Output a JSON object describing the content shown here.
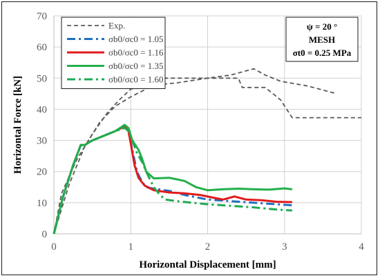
{
  "chart_data": {
    "type": "line",
    "xlabel": "Horizontal Displacement [mm]",
    "ylabel": "Horizontal Force [kN]",
    "xlim": [
      0,
      4
    ],
    "ylim": [
      0,
      70
    ],
    "xticks": [
      0,
      1,
      2,
      3,
      4
    ],
    "yticks": [
      0,
      10,
      20,
      30,
      40,
      50,
      60,
      70
    ],
    "grid": "vertical-and-horizontal",
    "legend_position": "top-left",
    "info_box": {
      "position": "top-right",
      "lines": [
        "ψ = 20 °",
        "MESH",
        "σt0 = 0.25 MPa"
      ]
    },
    "series": [
      {
        "name": "Exp.",
        "color": "#595959",
        "dash": "dashed",
        "segments": [
          [
            [
              0,
              0
            ],
            [
              0.1,
              13
            ],
            [
              0.3,
              24
            ],
            [
              0.5,
              32
            ],
            [
              0.7,
              39
            ],
            [
              0.85,
              43
            ],
            [
              1.0,
              46.5
            ],
            [
              1.2,
              47.5
            ],
            [
              1.6,
              48.5
            ],
            [
              2.0,
              50
            ],
            [
              2.3,
              51
            ],
            [
              2.6,
              53
            ],
            [
              2.75,
              51
            ],
            [
              2.95,
              49
            ],
            [
              3.3,
              47.5
            ],
            [
              3.68,
              45
            ]
          ],
          [
            [
              0,
              0
            ],
            [
              0.2,
              16
            ],
            [
              0.4,
              28
            ],
            [
              0.6,
              36
            ],
            [
              0.8,
              41
            ],
            [
              1.0,
              44
            ],
            [
              1.2,
              46.5
            ],
            [
              1.4,
              50
            ],
            [
              2.0,
              50
            ],
            [
              2.4,
              50
            ],
            [
              2.45,
              47
            ],
            [
              2.75,
              47
            ],
            [
              2.95,
              43
            ],
            [
              3.1,
              37.3
            ],
            [
              4.0,
              37.3
            ]
          ]
        ]
      },
      {
        "name": "σb0/σc0 = 1.05",
        "color": "#1f6fc0",
        "dash": "dash-dot",
        "points": [
          [
            0,
            0
          ],
          [
            0.12,
            12
          ],
          [
            0.25,
            22
          ],
          [
            0.35,
            28.5
          ],
          [
            0.4,
            28.5
          ],
          [
            0.5,
            30
          ],
          [
            0.65,
            31.5
          ],
          [
            0.8,
            33
          ],
          [
            0.92,
            34.5
          ],
          [
            0.97,
            33
          ],
          [
            1.02,
            27
          ],
          [
            1.08,
            20
          ],
          [
            1.14,
            17
          ],
          [
            1.2,
            15
          ],
          [
            1.3,
            14.5
          ],
          [
            1.5,
            13.8
          ],
          [
            1.7,
            12.5
          ],
          [
            2.0,
            11
          ],
          [
            2.3,
            10.5
          ],
          [
            2.6,
            10
          ],
          [
            2.9,
            9.5
          ],
          [
            3.1,
            9.2
          ]
        ]
      },
      {
        "name": "σb0/σc0 = 1.16",
        "color": "#e31a1c",
        "dash": "solid",
        "points": [
          [
            0,
            0
          ],
          [
            0.12,
            12
          ],
          [
            0.25,
            22
          ],
          [
            0.35,
            28.5
          ],
          [
            0.4,
            28.5
          ],
          [
            0.5,
            30
          ],
          [
            0.65,
            31.5
          ],
          [
            0.8,
            33
          ],
          [
            0.92,
            34.5
          ],
          [
            0.97,
            33
          ],
          [
            1.0,
            29
          ],
          [
            1.05,
            22
          ],
          [
            1.1,
            18
          ],
          [
            1.18,
            15.5
          ],
          [
            1.3,
            14
          ],
          [
            1.5,
            13.3
          ],
          [
            1.7,
            13
          ],
          [
            1.9,
            12.5
          ],
          [
            2.1,
            11.5
          ],
          [
            2.2,
            11
          ],
          [
            2.35,
            12
          ],
          [
            2.5,
            11
          ],
          [
            2.7,
            10.8
          ],
          [
            2.9,
            10.3
          ],
          [
            3.1,
            10.2
          ]
        ]
      },
      {
        "name": "σb0/σc0 = 1.35",
        "color": "#22b04a",
        "dash": "solid",
        "points": [
          [
            0,
            0
          ],
          [
            0.12,
            12
          ],
          [
            0.25,
            22
          ],
          [
            0.35,
            28.5
          ],
          [
            0.4,
            28.5
          ],
          [
            0.5,
            30
          ],
          [
            0.65,
            31.5
          ],
          [
            0.8,
            33
          ],
          [
            0.92,
            35
          ],
          [
            0.97,
            34
          ],
          [
            1.02,
            30
          ],
          [
            1.1,
            27
          ],
          [
            1.15,
            24
          ],
          [
            1.2,
            20
          ],
          [
            1.3,
            17.8
          ],
          [
            1.5,
            18
          ],
          [
            1.7,
            17
          ],
          [
            1.85,
            15
          ],
          [
            2.0,
            14
          ],
          [
            2.2,
            14.3
          ],
          [
            2.4,
            14.5
          ],
          [
            2.6,
            14.3
          ],
          [
            2.8,
            14.2
          ],
          [
            3.0,
            14.6
          ],
          [
            3.1,
            14.3
          ]
        ]
      },
      {
        "name": "σb0/σc0 = 1.60",
        "color": "#1faa54",
        "dash": "dash-dot",
        "points": [
          [
            0,
            0
          ],
          [
            0.12,
            12
          ],
          [
            0.25,
            22
          ],
          [
            0.35,
            28.5
          ],
          [
            0.4,
            28.5
          ],
          [
            0.5,
            30
          ],
          [
            0.65,
            31.5
          ],
          [
            0.8,
            33
          ],
          [
            0.92,
            34
          ],
          [
            0.97,
            33
          ],
          [
            1.02,
            30
          ],
          [
            1.08,
            26
          ],
          [
            1.15,
            23
          ],
          [
            1.22,
            19
          ],
          [
            1.3,
            15
          ],
          [
            1.38,
            12.5
          ],
          [
            1.45,
            11
          ],
          [
            1.6,
            10.5
          ],
          [
            1.8,
            10
          ],
          [
            2.0,
            9.5
          ],
          [
            2.3,
            9
          ],
          [
            2.6,
            8.5
          ],
          [
            2.9,
            7.8
          ],
          [
            3.1,
            7.5
          ]
        ]
      }
    ]
  }
}
